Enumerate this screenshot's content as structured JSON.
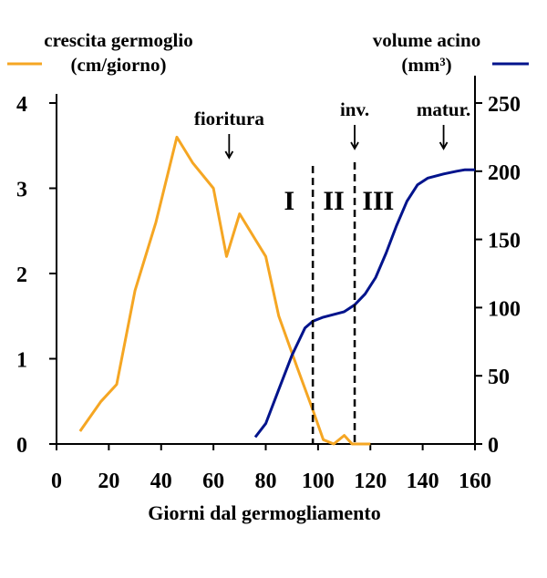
{
  "chart_data": {
    "type": "line",
    "xlabel": "Giorni dal germogliamento",
    "xlim": [
      0,
      160
    ],
    "xticks": [
      0,
      20,
      40,
      60,
      80,
      100,
      120,
      140,
      160
    ],
    "y_left": {
      "label_line1": "crescita germoglio",
      "label_line2": "(cm/giorno)",
      "ylim": [
        0,
        4
      ],
      "ticks": [
        0,
        1,
        2,
        3,
        4
      ]
    },
    "y_right": {
      "label_line1": "volume acino",
      "label_line2": "(mm³)",
      "ylim": [
        0,
        250
      ],
      "ticks": [
        0,
        50,
        100,
        150,
        200,
        250
      ]
    },
    "series": [
      {
        "color": "#f5a623",
        "axis": "left",
        "x": [
          9,
          17,
          23,
          30,
          38,
          46,
          52,
          60,
          65,
          70,
          76,
          80,
          85,
          92,
          98,
          102,
          106,
          110,
          113,
          115,
          120
        ],
        "y": [
          0.15,
          0.5,
          0.7,
          1.8,
          2.6,
          3.6,
          3.3,
          3.0,
          2.2,
          2.7,
          2.4,
          2.2,
          1.5,
          0.9,
          0.4,
          0.05,
          0.0,
          0.1,
          0.0,
          0.0,
          0.0
        ]
      },
      {
        "color": "#00138c",
        "axis": "right",
        "x": [
          76,
          80,
          85,
          90,
          95,
          98,
          102,
          106,
          110,
          114,
          118,
          122,
          126,
          130,
          134,
          138,
          142,
          148,
          153,
          156,
          160
        ],
        "y": [
          5,
          15,
          40,
          65,
          85,
          90,
          93,
          95,
          97,
          102,
          110,
          122,
          140,
          160,
          178,
          190,
          195,
          198,
          200,
          201,
          201
        ]
      }
    ],
    "vlines": [
      98,
      114
    ],
    "phases": [
      "I",
      "II",
      "III"
    ],
    "annotations": [
      {
        "text": "fioritura",
        "x": 66
      },
      {
        "text": "inv.",
        "x": 114
      },
      {
        "text": "matur.",
        "x": 148
      }
    ]
  }
}
